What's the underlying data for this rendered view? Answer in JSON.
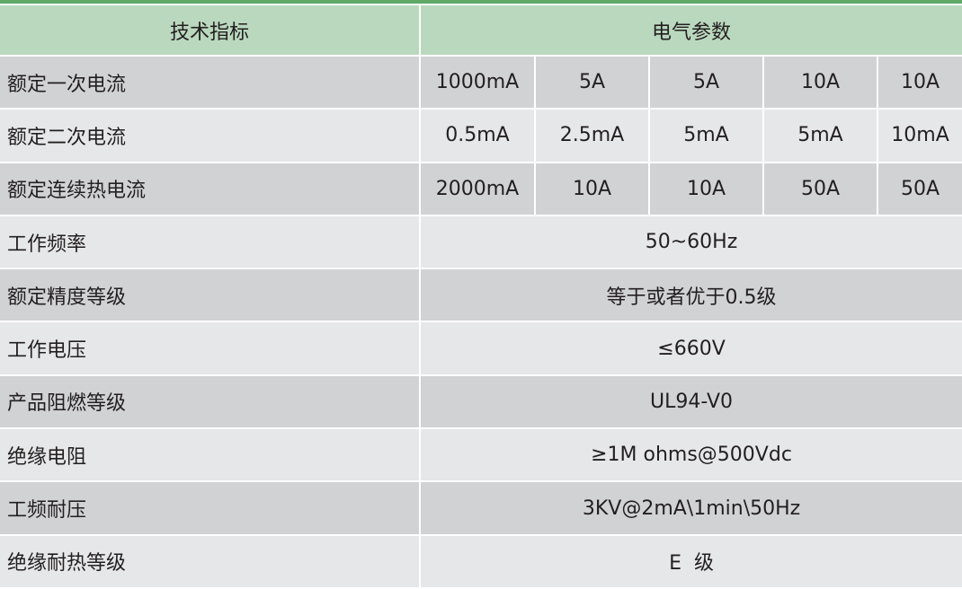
{
  "colors": {
    "top_bar": "#5fa867",
    "header": "#bad8be",
    "row_dark": "#d1d2d4",
    "row_light": "#e6e7e8"
  },
  "header": {
    "col1": "技术指标",
    "col2": "电气参数"
  },
  "multi_rows": [
    {
      "label": "额定一次电流",
      "values": [
        "1000mA",
        "5A",
        "5A",
        "10A",
        "10A"
      ]
    },
    {
      "label": "额定二次电流",
      "values": [
        "0.5mA",
        "2.5mA",
        "5mA",
        "5mA",
        "10mA"
      ]
    },
    {
      "label": "额定连续热电流",
      "values": [
        "2000mA",
        "10A",
        "10A",
        "50A",
        "50A"
      ]
    }
  ],
  "single_rows": [
    {
      "label": "工作频率",
      "value": "50~60Hz"
    },
    {
      "label": "额定精度等级",
      "value": "等于或者优于0.5级"
    },
    {
      "label": "工作电压",
      "value": "≤660V"
    },
    {
      "label": "产品阻燃等级",
      "value": "UL94-V0"
    },
    {
      "label": "绝缘电阻",
      "value": "≥1M ohms@500Vdc"
    },
    {
      "label": "工频耐压",
      "value": "3KV@2mA\\1min\\50Hz"
    },
    {
      "label": "绝缘耐热等级",
      "value": "E  级"
    }
  ]
}
